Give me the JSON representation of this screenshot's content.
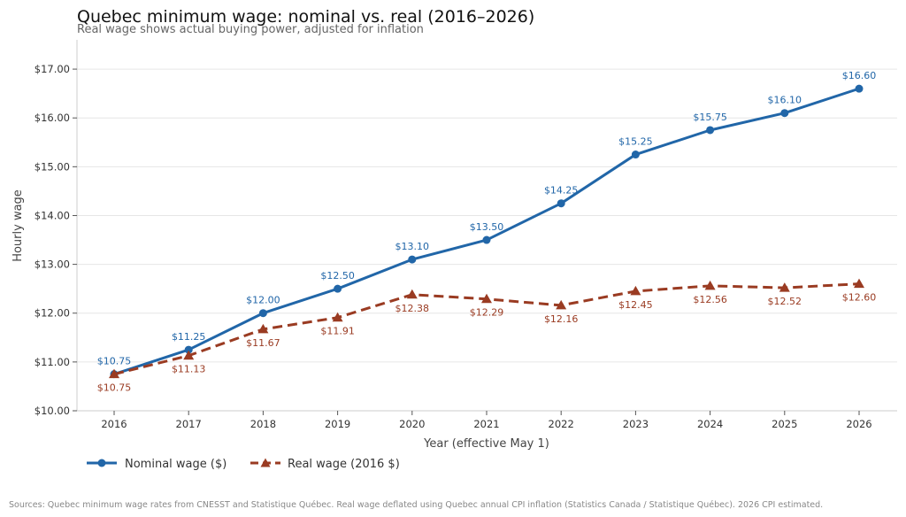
{
  "chart_data": {
    "type": "line",
    "title": "Quebec minimum wage: nominal vs. real (2016–2026)",
    "subtitle": "Real wage shows actual buying power, adjusted for inflation",
    "xlabel": "Year (effective May 1)",
    "ylabel": "Hourly wage",
    "x": [
      "2016",
      "2017",
      "2018",
      "2019",
      "2020",
      "2021",
      "2022",
      "2023",
      "2024",
      "2025",
      "2026"
    ],
    "ylim": [
      10,
      17.6
    ],
    "yticks": [
      10,
      11,
      12,
      13,
      14,
      15,
      16,
      17
    ],
    "ytick_labels": [
      "$10.00",
      "$11.00",
      "$12.00",
      "$13.00",
      "$14.00",
      "$15.00",
      "$16.00",
      "$17.00"
    ],
    "grid": "horizontal",
    "legend_position": "bottom-left",
    "series": [
      {
        "name": "Nominal wage ($)",
        "color": "#2166a8",
        "marker": "circle",
        "line_style": "solid",
        "label_position": "above",
        "values": [
          10.75,
          11.25,
          12.0,
          12.5,
          13.1,
          13.5,
          14.25,
          15.25,
          15.75,
          16.1,
          16.6
        ],
        "labels": [
          "$10.75",
          "$11.25",
          "$12.00",
          "$12.50",
          "$13.10",
          "$13.50",
          "$14.25",
          "$15.25",
          "$15.75",
          "$16.10",
          "$16.60"
        ]
      },
      {
        "name": "Real wage (2016 $)",
        "color": "#9a3b22",
        "marker": "triangle",
        "line_style": "dashed",
        "label_position": "below",
        "values": [
          10.75,
          11.13,
          11.67,
          11.91,
          12.38,
          12.29,
          12.16,
          12.45,
          12.56,
          12.52,
          12.6
        ],
        "labels": [
          "$10.75",
          "$11.13",
          "$11.67",
          "$11.91",
          "$12.38",
          "$12.29",
          "$12.16",
          "$12.45",
          "$12.56",
          "$12.52",
          "$12.60"
        ]
      }
    ],
    "source_note": "Sources: Quebec minimum wage rates from CNESST and Statistique Québec. Real wage deflated using Quebec annual CPI inflation (Statistics Canada / Statistique Québec). 2026 CPI estimated."
  }
}
